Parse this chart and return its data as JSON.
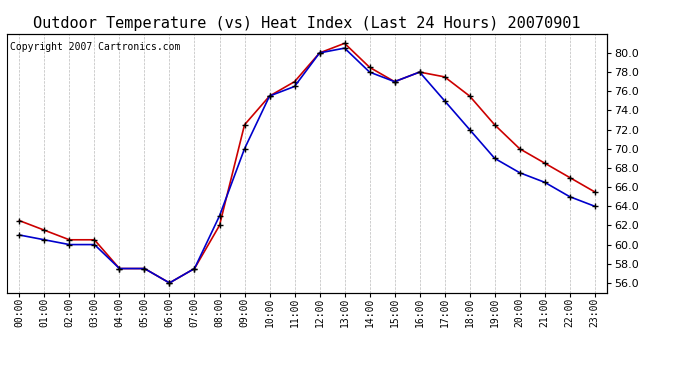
{
  "title": "Outdoor Temperature (vs) Heat Index (Last 24 Hours) 20070901",
  "copyright": "Copyright 2007 Cartronics.com",
  "hours": [
    "00:00",
    "01:00",
    "02:00",
    "03:00",
    "04:00",
    "05:00",
    "06:00",
    "07:00",
    "08:00",
    "09:00",
    "10:00",
    "11:00",
    "12:00",
    "13:00",
    "14:00",
    "15:00",
    "16:00",
    "17:00",
    "18:00",
    "19:00",
    "20:00",
    "21:00",
    "22:00",
    "23:00"
  ],
  "temp": [
    61.0,
    60.5,
    60.0,
    60.0,
    57.5,
    57.5,
    56.0,
    57.5,
    63.0,
    70.0,
    75.5,
    76.5,
    80.0,
    80.5,
    78.0,
    77.0,
    78.0,
    75.0,
    72.0,
    69.0,
    67.5,
    66.5,
    65.0,
    64.0
  ],
  "heat_index": [
    62.5,
    61.5,
    60.5,
    60.5,
    57.5,
    57.5,
    56.0,
    57.5,
    62.0,
    72.5,
    75.5,
    77.0,
    80.0,
    81.0,
    78.5,
    77.0,
    78.0,
    77.5,
    75.5,
    72.5,
    70.0,
    68.5,
    67.0,
    65.5
  ],
  "temp_color": "#0000cc",
  "heat_index_color": "#cc0000",
  "ylim": [
    55.0,
    82.0
  ],
  "yticks": [
    56.0,
    58.0,
    60.0,
    62.0,
    64.0,
    66.0,
    68.0,
    70.0,
    72.0,
    74.0,
    76.0,
    78.0,
    80.0
  ],
  "background_color": "#ffffff",
  "plot_bg_color": "#ffffff",
  "grid_color": "#bbbbbb",
  "title_fontsize": 11,
  "copyright_fontsize": 7
}
